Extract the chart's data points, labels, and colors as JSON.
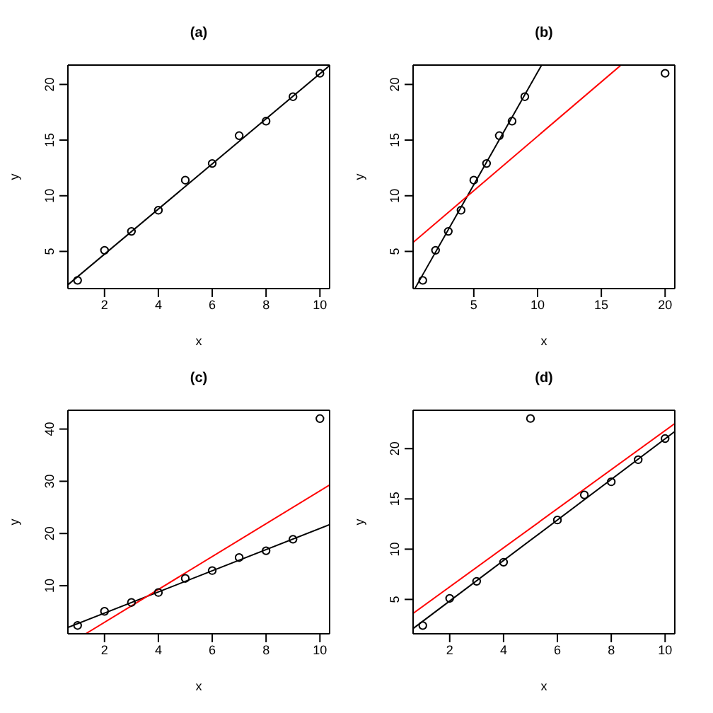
{
  "chart_data": [
    {
      "type": "scatter",
      "title": "(a)",
      "xlabel": "x",
      "ylabel": "y",
      "xlim": [
        0.64,
        10.36
      ],
      "ylim": [
        1.66,
        21.74
      ],
      "xticks": [
        2,
        4,
        6,
        8,
        10
      ],
      "yticks": [
        5,
        10,
        15,
        20
      ],
      "series": [
        {
          "type": "scatter",
          "color": "#000000",
          "marker": "circle",
          "x": [
            1,
            2,
            3,
            4,
            5,
            6,
            7,
            8,
            9,
            10
          ],
          "values": [
            2.4,
            5.1,
            6.8,
            8.7,
            11.4,
            12.9,
            15.4,
            16.7,
            18.9,
            21
          ]
        },
        {
          "type": "line",
          "color": "#000000",
          "marker": "none",
          "line_style": "solid",
          "x": [
            0.64,
            10.36
          ],
          "values": [
            2.0,
            21.7
          ]
        }
      ]
    },
    {
      "type": "scatter",
      "title": "(b)",
      "xlabel": "x",
      "ylabel": "y",
      "xlim": [
        0.24,
        20.76
      ],
      "ylim": [
        1.66,
        21.74
      ],
      "xticks": [
        5,
        10,
        15,
        20
      ],
      "yticks": [
        5,
        10,
        15,
        20
      ],
      "series": [
        {
          "type": "scatter",
          "color": "#000000",
          "marker": "circle",
          "x": [
            1,
            2,
            3,
            4,
            5,
            6,
            7,
            8,
            9,
            20
          ],
          "values": [
            2.4,
            5.1,
            6.8,
            8.7,
            11.4,
            12.9,
            15.4,
            16.7,
            18.9,
            21
          ]
        },
        {
          "type": "line",
          "color": "#000000",
          "marker": "none",
          "line_style": "solid",
          "x": [
            0.4,
            10.3
          ],
          "values": [
            1.7,
            21.7
          ]
        },
        {
          "type": "line",
          "color": "#ff0000",
          "marker": "none",
          "line_style": "solid",
          "x": [
            0.24,
            16.5
          ],
          "values": [
            5.8,
            21.7
          ]
        }
      ]
    },
    {
      "type": "scatter",
      "title": "(c)",
      "xlabel": "x",
      "ylabel": "y",
      "xlim": [
        0.64,
        10.36
      ],
      "ylim": [
        0.8,
        43.6
      ],
      "xticks": [
        2,
        4,
        6,
        8,
        10
      ],
      "yticks": [
        10,
        20,
        30,
        40
      ],
      "series": [
        {
          "type": "scatter",
          "color": "#000000",
          "marker": "circle",
          "x": [
            1,
            2,
            3,
            4,
            5,
            6,
            7,
            8,
            9,
            10
          ],
          "values": [
            2.4,
            5.1,
            6.8,
            8.7,
            11.4,
            12.9,
            15.4,
            16.7,
            18.9,
            42
          ]
        },
        {
          "type": "line",
          "color": "#000000",
          "marker": "none",
          "line_style": "solid",
          "x": [
            0.64,
            10.36
          ],
          "values": [
            2.0,
            21.7
          ]
        },
        {
          "type": "line",
          "color": "#ff0000",
          "marker": "none",
          "line_style": "solid",
          "x": [
            1.3,
            10.36
          ],
          "values": [
            0.8,
            29.3
          ]
        }
      ]
    },
    {
      "type": "scatter",
      "title": "(d)",
      "xlabel": "x",
      "ylabel": "y",
      "xlim": [
        0.64,
        10.36
      ],
      "ylim": [
        1.58,
        23.82
      ],
      "xticks": [
        2,
        4,
        6,
        8,
        10
      ],
      "yticks": [
        5,
        10,
        15,
        20
      ],
      "series": [
        {
          "type": "scatter",
          "color": "#000000",
          "marker": "circle",
          "x": [
            1,
            2,
            3,
            4,
            5,
            6,
            7,
            8,
            9,
            10
          ],
          "values": [
            2.4,
            5.1,
            6.8,
            8.7,
            23,
            12.9,
            15.4,
            16.7,
            18.9,
            21
          ]
        },
        {
          "type": "line",
          "color": "#ff0000",
          "marker": "none",
          "line_style": "solid",
          "x": [
            0.64,
            10.36
          ],
          "values": [
            3.6,
            22.5
          ]
        },
        {
          "type": "line",
          "color": "#000000",
          "marker": "none",
          "line_style": "solid",
          "x": [
            0.64,
            10.36
          ],
          "values": [
            2.1,
            21.7
          ]
        }
      ]
    }
  ]
}
